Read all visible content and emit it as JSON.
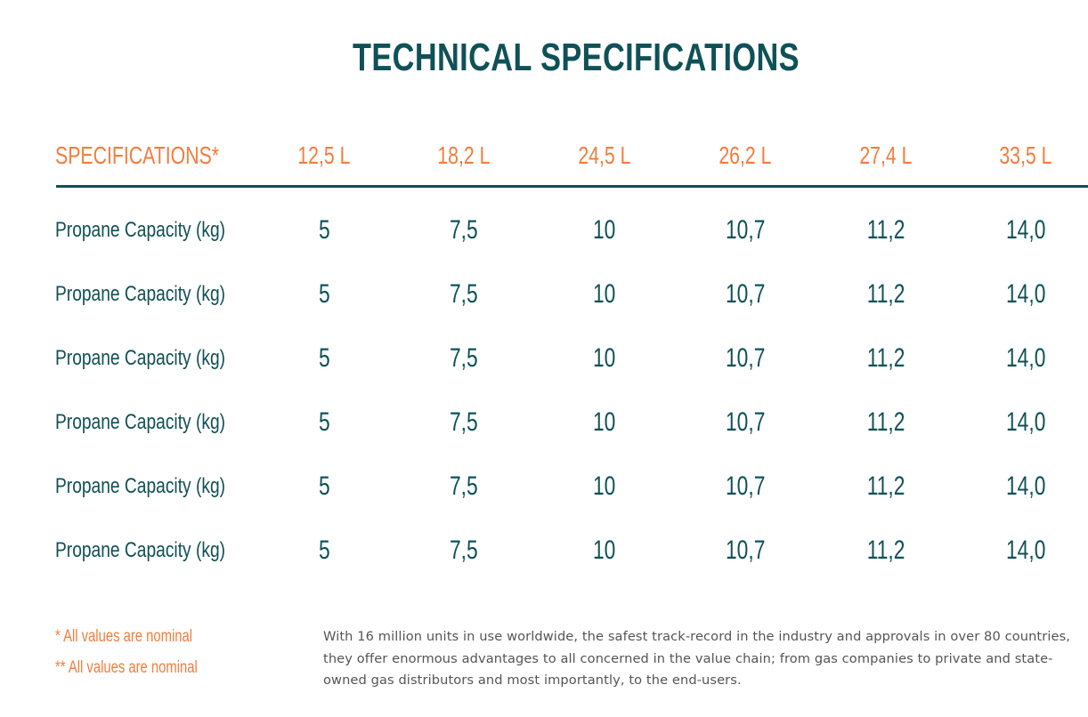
{
  "title": "TECHNICAL SPECIFICATIONS",
  "table": {
    "header_label": "SPECIFICATIONS*",
    "columns": [
      "12,5 L",
      "18,2 L",
      "24,5 L",
      "26,2 L",
      "27,4 L",
      "33,5 L"
    ],
    "rows": [
      {
        "label": "Propane Capacity (kg)",
        "values": [
          "5",
          "7,5",
          "10",
          "10,7",
          "11,2",
          "14,0"
        ]
      },
      {
        "label": "Propane Capacity (kg)",
        "values": [
          "5",
          "7,5",
          "10",
          "10,7",
          "11,2",
          "14,0"
        ]
      },
      {
        "label": "Propane Capacity (kg)",
        "values": [
          "5",
          "7,5",
          "10",
          "10,7",
          "11,2",
          "14,0"
        ]
      },
      {
        "label": "Propane Capacity (kg)",
        "values": [
          "5",
          "7,5",
          "10",
          "10,7",
          "11,2",
          "14,0"
        ]
      },
      {
        "label": "Propane Capacity (kg)",
        "values": [
          "5",
          "7,5",
          "10",
          "10,7",
          "11,2",
          "14,0"
        ]
      },
      {
        "label": "Propane Capacity (kg)",
        "values": [
          "5",
          "7,5",
          "10",
          "10,7",
          "11,2",
          "14,0"
        ]
      }
    ]
  },
  "notes": [
    "* All values are nominal",
    "** All values are nominal"
  ],
  "description": "With 16 million units in use worldwide, the safest track-record in the industry and approvals in over 80 countries, they offer enormous advantages to all concerned in the value chain; from gas companies to private and state-owned gas distributors and most importantly, to the end-users.",
  "colors": {
    "accent_orange": "#f47c3c",
    "primary_teal": "#0f5157",
    "body_gray": "#555555"
  }
}
